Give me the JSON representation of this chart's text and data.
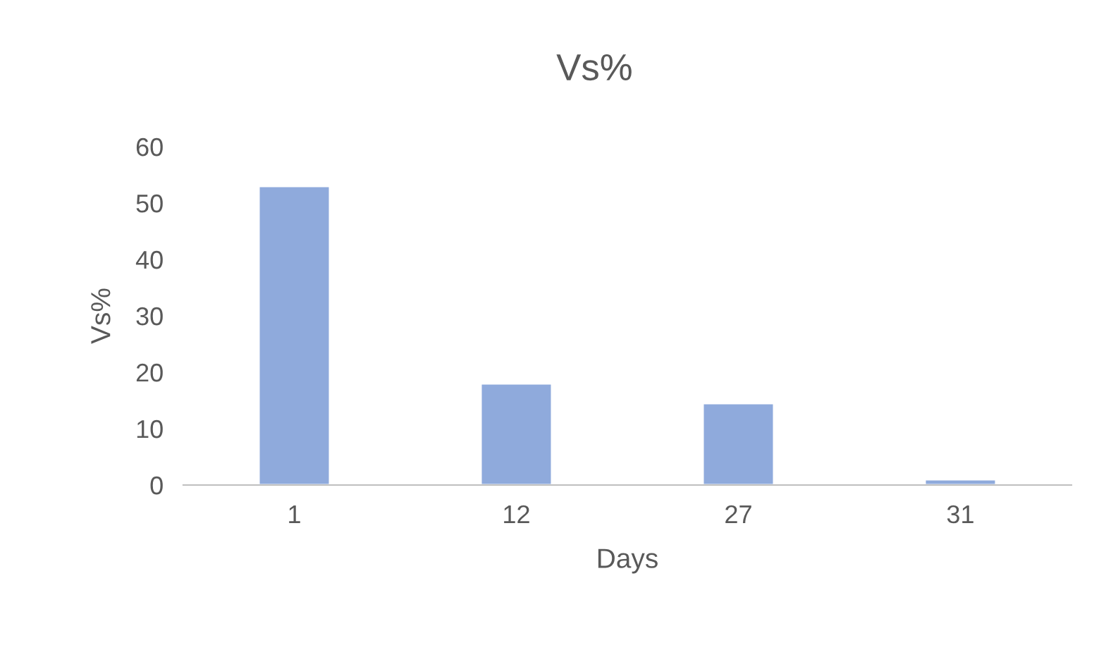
{
  "chart_data": {
    "type": "bar",
    "title": "Vs%",
    "xlabel": "Days",
    "ylabel": "Vs%",
    "categories": [
      "1",
      "12",
      "27",
      "31"
    ],
    "values": [
      53,
      18,
      14.5,
      1
    ],
    "color": "#8faadc",
    "ylim": [
      0,
      60
    ],
    "yticks": [
      0,
      10,
      20,
      30,
      40,
      50,
      60
    ],
    "grid": false
  }
}
